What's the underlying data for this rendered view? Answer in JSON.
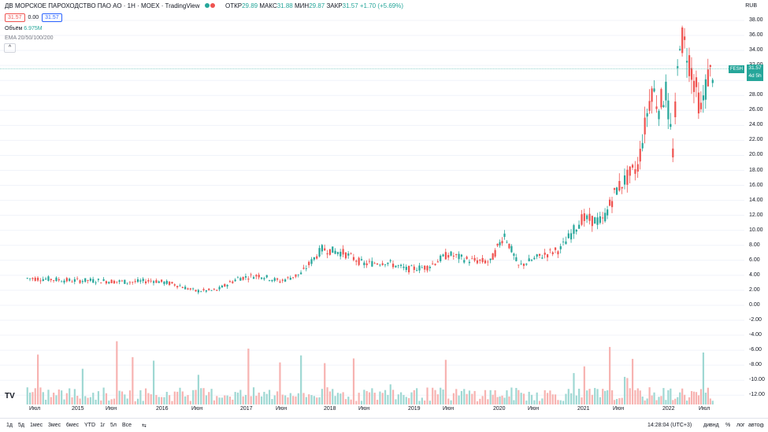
{
  "legend": {
    "title": "ДВ МОРСКОЕ ПАРОХОДСТВО ПАО АО · 1Н · MOEX · TradingView",
    "open_k": "ОТКР",
    "open_v": "29.89",
    "high_k": "МАКС",
    "high_v": "31.88",
    "low_k": "МИН",
    "low_v": "29.87",
    "close_k": "ЗАКР",
    "close_v": "31.57 +1.70 (+5.69%)",
    "bid": "31.57",
    "spread": "0.00",
    "ask": "31.57",
    "volume_k": "Объём",
    "volume_v": "6.975M",
    "ema": "EMA 20/50/100/200",
    "collapse": "^"
  },
  "currency": "RUB",
  "last_price": {
    "symbol": "FESH",
    "price": "31.57",
    "countdown": "4d 5h"
  },
  "toolbar": {
    "ranges": [
      "1д",
      "5д",
      "1мес",
      "3мес",
      "6мес",
      "YTD",
      "1г",
      "5л",
      "Все"
    ],
    "clock": "14:28:04 (UTC+3)",
    "div": "дивнд",
    "pct": "%",
    "log": "лог",
    "auto": "авто"
  },
  "colors": {
    "up": "#26a69a",
    "down": "#ef5350",
    "grid": "#f0f3fa"
  },
  "chart_data": {
    "type": "candlestick",
    "y_ticks": [
      "38.00",
      "36.00",
      "34.00",
      "32.00",
      "30.00",
      "28.00",
      "26.00",
      "24.00",
      "22.00",
      "20.00",
      "18.00",
      "16.00",
      "14.00",
      "12.00",
      "10.00",
      "8.00",
      "6.00",
      "4.00",
      "2.00",
      "0.00",
      "-2.00",
      "-4.00",
      "-6.00",
      "-8.00",
      "-10.00",
      "-12.00"
    ],
    "x_ticks": [
      "Июл",
      "2015",
      "Июн",
      "2016",
      "Июн",
      "2017",
      "Июн",
      "2018",
      "Июн",
      "2019",
      "Июн",
      "2020",
      "Июн",
      "2021",
      "Июн",
      "2022",
      "Июл"
    ],
    "series": [
      {
        "x": "2014-06",
        "y": 3.6
      },
      {
        "x": "2014-09",
        "y": 3.5
      },
      {
        "x": "2014-12",
        "y": 3.3
      },
      {
        "x": "2015-03",
        "y": 3.3
      },
      {
        "x": "2015-06",
        "y": 3.2
      },
      {
        "x": "2015-09",
        "y": 3.1
      },
      {
        "x": "2015-12",
        "y": 3.3
      },
      {
        "x": "2016-03",
        "y": 2.8
      },
      {
        "x": "2016-06",
        "y": 1.9
      },
      {
        "x": "2016-09",
        "y": 2.0
      },
      {
        "x": "2016-12",
        "y": 3.6
      },
      {
        "x": "2017-03",
        "y": 4.0
      },
      {
        "x": "2017-06",
        "y": 3.2
      },
      {
        "x": "2017-09",
        "y": 4.2
      },
      {
        "x": "2017-12",
        "y": 7.5
      },
      {
        "x": "2018-03",
        "y": 7.0
      },
      {
        "x": "2018-06",
        "y": 5.5
      },
      {
        "x": "2018-09",
        "y": 5.8
      },
      {
        "x": "2018-12",
        "y": 4.8
      },
      {
        "x": "2019-03",
        "y": 5.1
      },
      {
        "x": "2019-06",
        "y": 6.8
      },
      {
        "x": "2019-09",
        "y": 6.0
      },
      {
        "x": "2019-12",
        "y": 5.8
      },
      {
        "x": "2020-02",
        "y": 9.5
      },
      {
        "x": "2020-04",
        "y": 5.2
      },
      {
        "x": "2020-07",
        "y": 6.5
      },
      {
        "x": "2020-10",
        "y": 7.5
      },
      {
        "x": "2021-01",
        "y": 11.5
      },
      {
        "x": "2021-04",
        "y": 11.2
      },
      {
        "x": "2021-06",
        "y": 15.5
      },
      {
        "x": "2021-09",
        "y": 18.5
      },
      {
        "x": "2021-11",
        "y": 29.0
      },
      {
        "x": "2021-12",
        "y": 26.5
      },
      {
        "x": "2022-01",
        "y": 28.5
      },
      {
        "x": "2022-02",
        "y": 20.5
      },
      {
        "x": "2022-03",
        "y": 36.0
      },
      {
        "x": "2022-04",
        "y": 34.0
      },
      {
        "x": "2022-05",
        "y": 30.0
      },
      {
        "x": "2022-06",
        "y": 26.0
      },
      {
        "x": "2022-07",
        "y": 30.5
      },
      {
        "x": "2022-08",
        "y": 31.57
      }
    ]
  }
}
